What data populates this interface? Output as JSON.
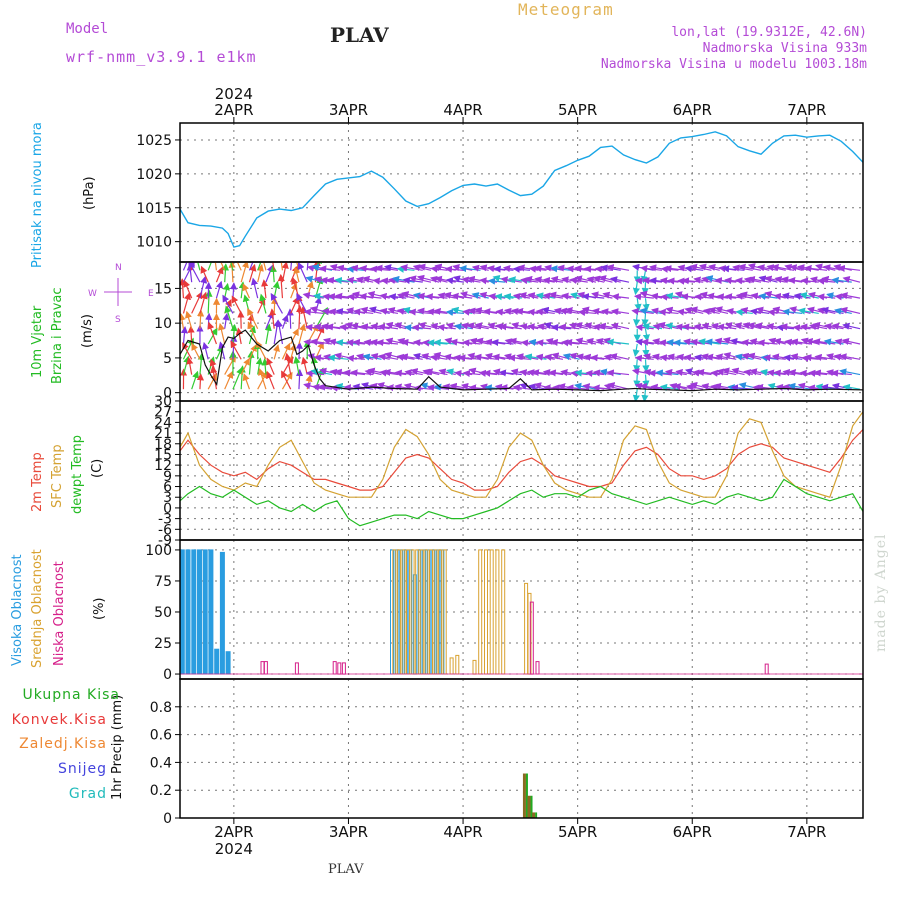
{
  "header": {
    "model_label": "Model",
    "model_name": "wrf-nmm_v3.9.1 e1km",
    "station": "PLAV",
    "title": "Meteogram",
    "coords": "lon,lat (19.9312E, 42.6N)",
    "elevation": "Nadmorska Visina 933m",
    "model_elevation": "Nadmorska Visina u modelu 1003.18m"
  },
  "footer": {
    "station": "PLAV"
  },
  "watermark": "made by Angel",
  "colors": {
    "pressure": "#1aa6e6",
    "temp2m": "#e84a3a",
    "sfc": "#d4a232",
    "dewpt": "#22bb22",
    "cloud_high": "#2a9de0",
    "cloud_mid": "#d9a230",
    "cloud_low": "#d6208a",
    "precip_total": "#22aa22",
    "precip_conv": "#e83a3a",
    "precip_strat": "#ee8833",
    "precip_snow": "#4444dd",
    "precip_hail": "#22bbbb",
    "title_gold": "#e2b55a",
    "header_purple": "#b44bd6"
  },
  "chart_data": {
    "type": "line",
    "x_axis": {
      "top_year": "2024",
      "bottom_year": "2024",
      "range_days": [
        1.53,
        7.49
      ],
      "ticks": [
        {
          "day": 2,
          "label": "2APR"
        },
        {
          "day": 3,
          "label": "3APR"
        },
        {
          "day": 4,
          "label": "4APR"
        },
        {
          "day": 5,
          "label": "5APR"
        },
        {
          "day": 6,
          "label": "6APR"
        },
        {
          "day": 7,
          "label": "7APR"
        }
      ]
    },
    "panels": [
      {
        "id": "pressure",
        "ylabel_lines": [
          "Pritisak na nivou mora",
          "(hPa)"
        ],
        "ylim": [
          1007,
          1027.5
        ],
        "yticks": [
          1010,
          1015,
          1020,
          1025
        ],
        "series": [
          {
            "name": "pressure",
            "x": [
              1.53,
              1.6,
              1.7,
              1.8,
              1.9,
              1.95,
              2.0,
              2.05,
              2.1,
              2.2,
              2.3,
              2.4,
              2.5,
              2.6,
              2.7,
              2.8,
              2.9,
              3.0,
              3.1,
              3.2,
              3.3,
              3.4,
              3.5,
              3.6,
              3.7,
              3.8,
              3.9,
              4.0,
              4.1,
              4.2,
              4.3,
              4.4,
              4.5,
              4.6,
              4.7,
              4.8,
              4.9,
              5.0,
              5.1,
              5.2,
              5.3,
              5.4,
              5.5,
              5.6,
              5.7,
              5.8,
              5.9,
              6.0,
              6.1,
              6.2,
              6.3,
              6.4,
              6.5,
              6.6,
              6.7,
              6.8,
              6.9,
              7.0,
              7.1,
              7.2,
              7.3,
              7.4,
              7.49
            ],
            "y": [
              1014.8,
              1012.8,
              1012.4,
              1012.3,
              1012.0,
              1011.2,
              1009.2,
              1009.4,
              1010.8,
              1013.5,
              1014.5,
              1014.8,
              1014.6,
              1015.0,
              1016.8,
              1018.5,
              1019.2,
              1019.4,
              1019.6,
              1020.4,
              1019.5,
              1017.8,
              1016.0,
              1015.2,
              1015.6,
              1016.5,
              1017.5,
              1018.3,
              1018.5,
              1018.2,
              1018.5,
              1017.6,
              1016.8,
              1017.0,
              1018.2,
              1020.5,
              1021.2,
              1022.0,
              1022.6,
              1023.9,
              1024.1,
              1022.8,
              1022.1,
              1021.6,
              1022.5,
              1024.5,
              1025.3,
              1025.5,
              1025.8,
              1026.2,
              1025.6,
              1024.0,
              1023.4,
              1022.9,
              1024.5,
              1025.6,
              1025.7,
              1025.4,
              1025.6,
              1025.7,
              1024.8,
              1023.3,
              1021.7
            ]
          }
        ]
      },
      {
        "id": "wind",
        "ylabel_lines": [
          "10m Vjetar",
          "Brzina i Pravac",
          "(m/s)"
        ],
        "ylim": [
          -1.2,
          18.8
        ],
        "yticks": [
          0,
          5,
          10,
          15
        ],
        "compass": {
          "n": "N",
          "s": "S",
          "e": "E",
          "w": "W"
        },
        "series": [
          {
            "name": "wind speed",
            "x": [
              1.53,
              1.6,
              1.7,
              1.75,
              1.8,
              1.85,
              1.9,
              1.95,
              2.0,
              2.05,
              2.1,
              2.15,
              2.2,
              2.3,
              2.4,
              2.5,
              2.55,
              2.6,
              2.65,
              2.7,
              2.75,
              2.8,
              3.0,
              3.2,
              3.4,
              3.6,
              3.7,
              3.8,
              4.0,
              4.2,
              4.4,
              4.5,
              4.6,
              4.8,
              5.0,
              5.2,
              5.4,
              5.5,
              5.6,
              5.8,
              6.0,
              6.2,
              6.4,
              6.6,
              6.8,
              7.0,
              7.2,
              7.49
            ],
            "y": [
              5.5,
              7.5,
              7.0,
              4.0,
              2.5,
              1.2,
              6.5,
              8.0,
              7.8,
              8.5,
              9.0,
              8.0,
              7.0,
              6.0,
              7.5,
              8.0,
              5.5,
              6.0,
              6.8,
              4.0,
              2.0,
              1.0,
              0.5,
              0.8,
              0.6,
              0.5,
              2.3,
              0.8,
              0.4,
              0.5,
              0.6,
              2.0,
              0.4,
              0.5,
              0.4,
              0.3,
              0.5,
              0.6,
              0.5,
              0.4,
              0.3,
              0.5,
              0.4,
              0.5,
              0.6,
              0.4,
              0.5,
              0.4
            ]
          }
        ]
      },
      {
        "id": "temperature",
        "ylabel_lines": [
          "2m Temp",
          "SFC Temp",
          "dewpt Temp",
          "(C)"
        ],
        "ylim": [
          -9,
          30
        ],
        "yticks": [
          -9,
          -6,
          -3,
          0,
          3,
          6,
          9,
          12,
          15,
          18,
          21,
          24,
          27,
          30
        ],
        "series": [
          {
            "name": "2m Temp",
            "x": [
              1.53,
              1.6,
              1.7,
              1.8,
              1.9,
              2.0,
              2.1,
              2.2,
              2.3,
              2.4,
              2.5,
              2.6,
              2.7,
              2.8,
              2.9,
              3.0,
              3.1,
              3.2,
              3.3,
              3.4,
              3.5,
              3.6,
              3.7,
              3.8,
              3.9,
              4.0,
              4.1,
              4.2,
              4.3,
              4.4,
              4.5,
              4.6,
              4.7,
              4.8,
              4.9,
              5.0,
              5.1,
              5.2,
              5.3,
              5.4,
              5.5,
              5.6,
              5.7,
              5.8,
              5.9,
              6.0,
              6.1,
              6.2,
              6.3,
              6.4,
              6.5,
              6.6,
              6.7,
              6.8,
              6.9,
              7.0,
              7.1,
              7.2,
              7.3,
              7.4,
              7.49
            ],
            "y": [
              16,
              19,
              15,
              12,
              10,
              9,
              10,
              8,
              11,
              13,
              12,
              10,
              8,
              8,
              7,
              6,
              5,
              5,
              6,
              10,
              14,
              15,
              14,
              11,
              8,
              7,
              5,
              5,
              6,
              10,
              13,
              14,
              12,
              9,
              8,
              7,
              6,
              6,
              7,
              12,
              16,
              17,
              15,
              11,
              9,
              9,
              8,
              9,
              11,
              15,
              17,
              18,
              17,
              14,
              13,
              12,
              11,
              10,
              14,
              19,
              22
            ]
          },
          {
            "name": "SFC Temp",
            "x": [
              1.53,
              1.6,
              1.7,
              1.8,
              1.9,
              2.0,
              2.1,
              2.2,
              2.3,
              2.4,
              2.5,
              2.6,
              2.7,
              2.8,
              2.9,
              3.0,
              3.1,
              3.2,
              3.3,
              3.4,
              3.5,
              3.6,
              3.7,
              3.8,
              3.9,
              4.0,
              4.1,
              4.2,
              4.3,
              4.4,
              4.5,
              4.6,
              4.7,
              4.8,
              4.9,
              5.0,
              5.1,
              5.2,
              5.3,
              5.4,
              5.5,
              5.6,
              5.7,
              5.8,
              5.9,
              6.0,
              6.1,
              6.2,
              6.3,
              6.4,
              6.5,
              6.6,
              6.7,
              6.8,
              6.9,
              7.0,
              7.1,
              7.2,
              7.3,
              7.4,
              7.49
            ],
            "y": [
              17,
              21,
              12,
              8,
              6,
              5,
              7,
              6,
              12,
              17,
              19,
              13,
              7,
              5,
              4,
              3,
              3,
              3,
              8,
              17,
              22,
              20,
              15,
              8,
              5,
              4,
              3,
              3,
              8,
              17,
              21,
              19,
              12,
              7,
              5,
              4,
              3,
              3,
              8,
              19,
              23,
              22,
              13,
              7,
              5,
              4,
              3,
              3,
              9,
              21,
              25,
              24,
              16,
              9,
              6,
              5,
              4,
              3,
              12,
              23,
              27
            ]
          },
          {
            "name": "dewpt Temp",
            "x": [
              1.53,
              1.6,
              1.7,
              1.8,
              1.9,
              2.0,
              2.1,
              2.2,
              2.3,
              2.4,
              2.5,
              2.6,
              2.7,
              2.8,
              2.9,
              3.0,
              3.1,
              3.2,
              3.3,
              3.4,
              3.5,
              3.6,
              3.7,
              3.8,
              3.9,
              4.0,
              4.1,
              4.2,
              4.3,
              4.4,
              4.5,
              4.6,
              4.7,
              4.8,
              4.9,
              5.0,
              5.1,
              5.2,
              5.3,
              5.4,
              5.5,
              5.6,
              5.7,
              5.8,
              5.9,
              6.0,
              6.1,
              6.2,
              6.3,
              6.4,
              6.5,
              6.6,
              6.7,
              6.8,
              6.9,
              7.0,
              7.1,
              7.2,
              7.3,
              7.4,
              7.49
            ],
            "y": [
              2,
              4,
              6,
              4,
              3,
              5,
              3,
              1,
              2,
              0,
              -1,
              1,
              -1,
              1,
              2,
              -3,
              -5,
              -4,
              -3,
              -2,
              -2,
              -3,
              -1,
              -2,
              -3,
              -3,
              -2,
              -1,
              0,
              2,
              4,
              5,
              3,
              4,
              4,
              3,
              5,
              6,
              4,
              3,
              2,
              1,
              2,
              3,
              2,
              1,
              2,
              1,
              3,
              4,
              3,
              2,
              3,
              8,
              6,
              4,
              3,
              2,
              3,
              4,
              -1
            ]
          }
        ]
      },
      {
        "id": "cloud",
        "ylabel_lines": [
          "Visoka Oblacnost",
          "Srednja Oblacnost",
          "Niska Oblacnost",
          "(%)"
        ],
        "ylim": [
          -4,
          108
        ],
        "yticks": [
          0,
          25,
          50,
          75,
          100
        ],
        "series": [
          {
            "name": "Visoka Oblacnost",
            "style": "filled",
            "x": [
              1.55,
              1.6,
              1.65,
              1.7,
              1.75,
              1.8,
              1.85,
              1.9,
              1.95
            ],
            "y": [
              100,
              100,
              100,
              100,
              100,
              100,
              20,
              98,
              18
            ]
          },
          {
            "name": "Visoka Oblacnost (outline)",
            "style": "outline",
            "x": [
              3.38,
              3.42,
              3.46,
              3.5,
              3.54,
              3.58,
              3.62,
              3.66,
              3.7,
              3.74,
              3.78,
              3.82
            ],
            "y": [
              100,
              100,
              100,
              100,
              100,
              80,
              100,
              100,
              100,
              100,
              100,
              100
            ]
          },
          {
            "name": "Srednja Oblacnost",
            "style": "outline",
            "x": [
              3.4,
              3.44,
              3.48,
              3.52,
              3.56,
              3.6,
              3.64,
              3.68,
              3.72,
              3.76,
              3.8,
              3.84,
              3.9,
              3.95,
              4.1,
              4.15,
              4.2,
              4.25,
              4.3,
              4.35,
              4.55,
              4.58
            ],
            "y": [
              100,
              100,
              100,
              100,
              100,
              100,
              100,
              100,
              100,
              100,
              100,
              100,
              13,
              15,
              11,
              100,
              100,
              100,
              100,
              100,
              73,
              65
            ]
          },
          {
            "name": "Niska Oblacnost",
            "style": "outline",
            "x": [
              2.25,
              2.28,
              2.55,
              2.88,
              2.92,
              2.96,
              4.6,
              4.65,
              6.65
            ],
            "y": [
              10,
              10,
              9,
              10,
              9,
              9,
              58,
              10,
              8
            ]
          }
        ]
      },
      {
        "id": "precip",
        "ylabel_lines": [
          "1hr Precip (mm)"
        ],
        "ylim": [
          0,
          1.0
        ],
        "yticks": [
          0,
          0.2,
          0.4,
          0.6,
          0.8
        ],
        "ytick_labels": [
          "0",
          "0.2",
          "0.4",
          "0.6",
          "0.8"
        ],
        "legend": [
          {
            "label": "Ukupna Kisa",
            "key": "precip_total"
          },
          {
            "label": "Konvek.Kisa",
            "key": "precip_conv"
          },
          {
            "label": "Zaledj.Kisa",
            "key": "precip_strat"
          },
          {
            "label": "Snijeg",
            "key": "precip_snow"
          },
          {
            "label": "Grad",
            "key": "precip_hail"
          }
        ],
        "series": [
          {
            "name": "Ukupna Kisa",
            "x": [
              4.54,
              4.58,
              4.62
            ],
            "y": [
              0.32,
              0.16,
              0.04
            ]
          }
        ]
      }
    ]
  }
}
